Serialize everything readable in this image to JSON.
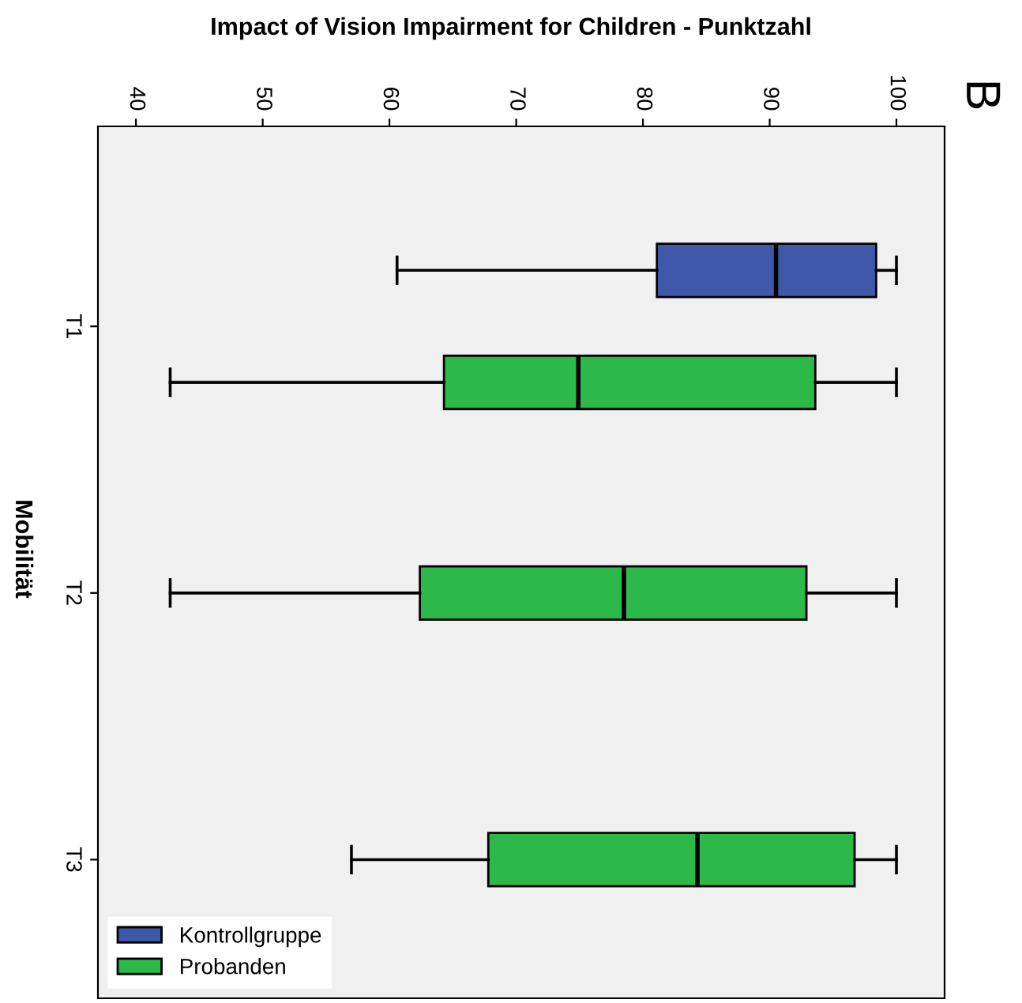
{
  "chart_data": {
    "type": "box",
    "orientation": "horizontal",
    "xlabel": "Impact of Vision Impairment for Children - Punktzahl",
    "ylabel": "Mobilität",
    "annotations": [
      "B"
    ],
    "categories": [
      "T1",
      "T2",
      "T3"
    ],
    "series": [
      {
        "name": "Kontrollgruppe",
        "color": "#3f58aa",
        "boxes": [
          {
            "low": 60.6,
            "q1": 81.1,
            "median": 90.5,
            "q3": 98.4,
            "high": 100
          },
          null,
          null
        ]
      },
      {
        "name": "Probanden",
        "color": "#2db84a",
        "boxes": [
          {
            "low": 42.7,
            "q1": 64.3,
            "median": 74.9,
            "q3": 93.6,
            "high": 100
          },
          {
            "low": 42.7,
            "q1": 62.4,
            "median": 78.5,
            "q3": 92.9,
            "high": 100
          },
          {
            "low": 57.0,
            "q1": 67.8,
            "median": 84.3,
            "q3": 96.7,
            "high": 100
          }
        ]
      }
    ],
    "xlim": [
      37,
      103.8
    ],
    "xticks": [
      40,
      50,
      60,
      70,
      80,
      90,
      100
    ],
    "grid": false,
    "legend": "bottom left"
  }
}
